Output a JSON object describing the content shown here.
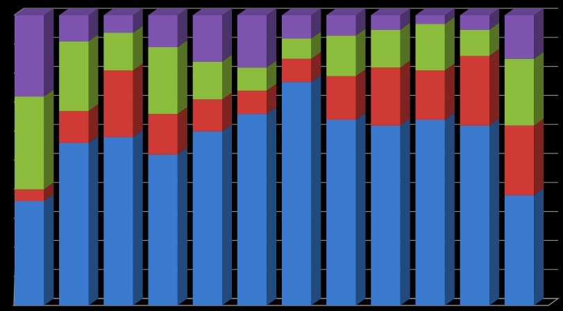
{
  "chart_data": {
    "type": "stacked-bar-3d",
    "categories": [
      null,
      null,
      null,
      null,
      null,
      null,
      null,
      null,
      null,
      null,
      null,
      null
    ],
    "series": [
      {
        "color": "#3a7bd0",
        "values": [
          36,
          56,
          58,
          52,
          60,
          66,
          77,
          64,
          62,
          64,
          62,
          38
        ]
      },
      {
        "color": "#d03a35",
        "values": [
          4,
          11,
          23,
          14,
          11,
          8,
          8,
          15,
          20,
          17,
          24,
          24
        ]
      },
      {
        "color": "#8cbc3c",
        "values": [
          32,
          24,
          13,
          23,
          13,
          8,
          7,
          14,
          13,
          16,
          9,
          23
        ]
      },
      {
        "color": "#7d55b0",
        "values": [
          28,
          9,
          6,
          11,
          16,
          18,
          8,
          7,
          5,
          3,
          5,
          15
        ]
      }
    ],
    "ylim": [
      0,
      100
    ],
    "yticks": [
      0,
      10,
      20,
      30,
      40,
      50,
      60,
      70,
      80,
      90,
      100
    ],
    "grid": true
  }
}
